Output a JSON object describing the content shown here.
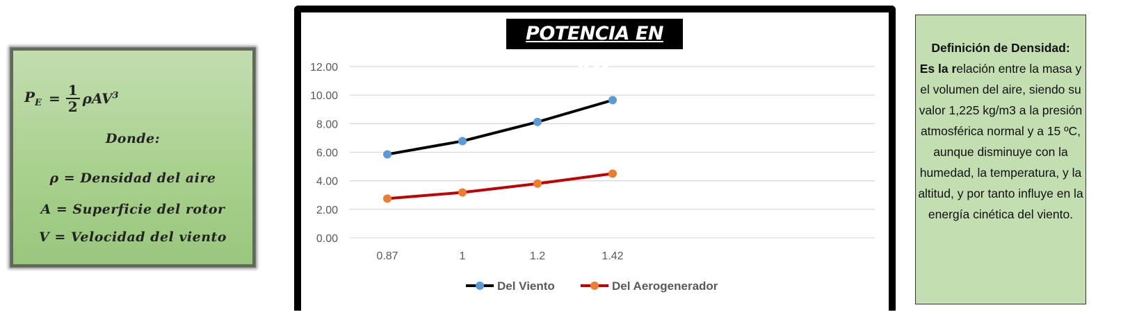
{
  "formula": {
    "lhs": "P",
    "lhs_sub": "E",
    "equals": "=",
    "frac_num": "1",
    "frac_den": "2",
    "rhs": "ρAV",
    "rhs_sup": "3",
    "where": "Donde:",
    "rho_line": "ρ = Densidad del aire",
    "a_line": "A = Superficie del rotor",
    "v_line": "V = Velocidad del viento"
  },
  "chart_data": {
    "type": "line",
    "title": "POTENCIA EN KW",
    "categories": [
      "0.87",
      "1",
      "1.2",
      "1.42"
    ],
    "series": [
      {
        "name": "Del Viento",
        "values": [
          5.85,
          6.78,
          8.12,
          9.65
        ],
        "line_color": "#000000",
        "marker_color": "#5b9bd5"
      },
      {
        "name": "Del Aerogenerador",
        "values": [
          2.75,
          3.18,
          3.8,
          4.5
        ],
        "line_color": "#c00000",
        "marker_color": "#ed7d31"
      }
    ],
    "y_ticks": [
      "0.00",
      "2.00",
      "4.00",
      "6.00",
      "8.00",
      "10.00",
      "12.00"
    ],
    "ylim": [
      0,
      12
    ],
    "grid": true,
    "legend_position": "bottom",
    "xlabel": "",
    "ylabel": ""
  },
  "definition": {
    "heading": "Definición de Densidad:",
    "lead": "Es la r",
    "body": "elación entre la masa y el volumen del aire, siendo su valor 1,225 kg/m3 a la presión atmosférica normal y a 15 ºC, aunque disminuye con la humedad, la temperatura, y la altitud, y por tanto influye en la energía cinética del viento."
  }
}
